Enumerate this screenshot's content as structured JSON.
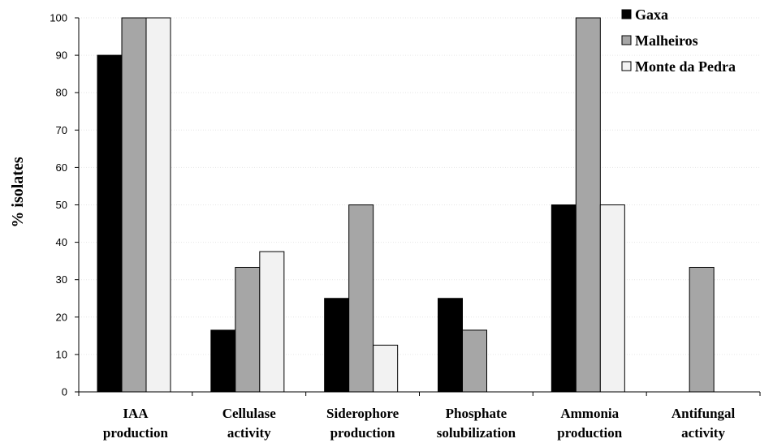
{
  "chart_data": {
    "type": "bar",
    "categories": [
      [
        "IAA",
        "production"
      ],
      [
        "Cellulase",
        "activity"
      ],
      [
        "Siderophore",
        "production"
      ],
      [
        "Phosphate",
        "solubilization"
      ],
      [
        "Ammonia",
        "production"
      ],
      [
        "Antifungal",
        "activity"
      ]
    ],
    "series": [
      {
        "name": "Gaxa",
        "color": "#000000",
        "values": [
          90,
          16.5,
          25,
          25,
          50,
          0
        ]
      },
      {
        "name": "Malheiros",
        "color": "#a6a6a6",
        "values": [
          100,
          33.3,
          50,
          16.5,
          100,
          33.3
        ]
      },
      {
        "name": "Monte da Pedra",
        "color": "#f2f2f2",
        "values": [
          100,
          37.5,
          12.5,
          0,
          50,
          0
        ]
      }
    ],
    "ylabel": "% isolates",
    "ylim": [
      0,
      100
    ],
    "yticks": [
      0,
      10,
      20,
      30,
      40,
      50,
      60,
      70,
      80,
      90,
      100
    ],
    "grid": true,
    "legend_position": "top-right"
  }
}
